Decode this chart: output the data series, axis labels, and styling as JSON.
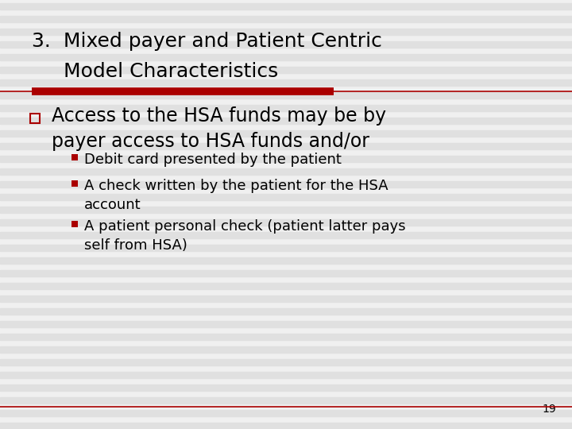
{
  "title_line1": "3.  Mixed payer and Patient Centric",
  "title_line2": "     Model Characteristics",
  "bg_color": "#f0f0f0",
  "stripe_color": "#e0e0e0",
  "title_color": "#000000",
  "red_bar_color": "#aa0000",
  "divider_color": "#aa0000",
  "bullet_square_color": "#aa0000",
  "sub_bullet_color": "#aa0000",
  "main_bullet_text_line1": "Access to the HSA funds may be by",
  "main_bullet_text_line2": "payer access to HSA funds and/or",
  "sub_bullets": [
    "Debit card presented by the patient",
    "A check written by the patient for the HSA\naccount",
    "A patient personal check (patient latter pays\nself from HSA)"
  ],
  "page_number": "19",
  "title_fontsize": 18,
  "main_bullet_fontsize": 17,
  "sub_bullet_fontsize": 13
}
